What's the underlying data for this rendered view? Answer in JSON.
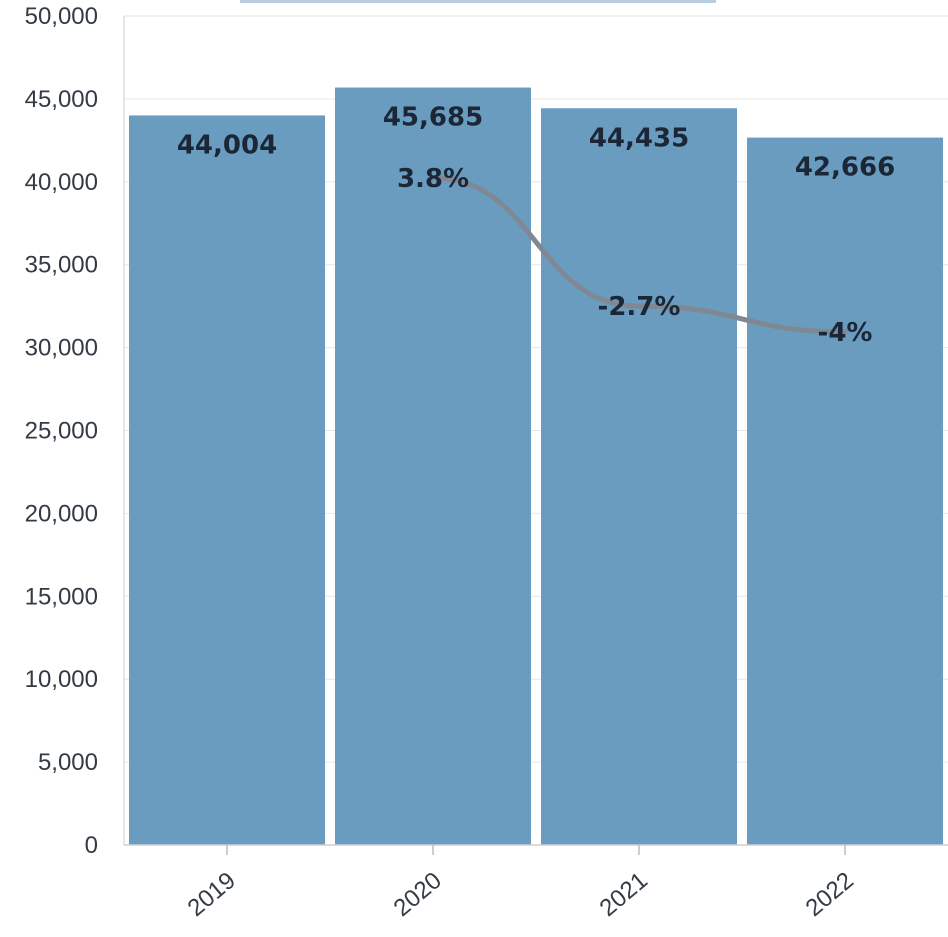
{
  "chart_data": {
    "type": "bar",
    "categories": [
      "2019",
      "2020",
      "2021",
      "2022"
    ],
    "series": [
      {
        "type": "bar",
        "values": [
          44004,
          45685,
          44435,
          42666
        ],
        "labels": [
          "44,004",
          "45,685",
          "44,435",
          "42,666"
        ]
      },
      {
        "type": "line",
        "values": [
          null,
          3.8,
          -2.7,
          -4
        ],
        "labels": [
          "",
          "3.8%",
          "-2.7%",
          "-4%"
        ]
      }
    ],
    "ylim": [
      0,
      50000
    ],
    "yticks": [
      {
        "value": 0,
        "label": "0"
      },
      {
        "value": 5000,
        "label": "5,000"
      },
      {
        "value": 10000,
        "label": "10,000"
      },
      {
        "value": 15000,
        "label": "15,000"
      },
      {
        "value": 20000,
        "label": "20,000"
      },
      {
        "value": 25000,
        "label": "25,000"
      },
      {
        "value": 30000,
        "label": "30,000"
      },
      {
        "value": 35000,
        "label": "35,000"
      },
      {
        "value": 40000,
        "label": "40,000"
      },
      {
        "value": 45000,
        "label": "45,000"
      },
      {
        "value": 50000,
        "label": "50,000"
      }
    ],
    "grid": true,
    "colors": {
      "bar": "#6a9cc0",
      "line": "#7f8893",
      "text": "#1b2636"
    }
  }
}
